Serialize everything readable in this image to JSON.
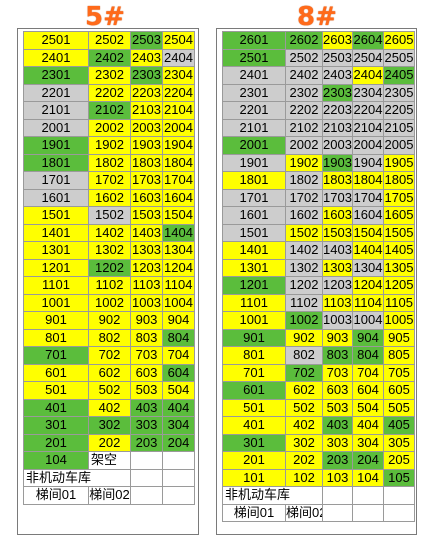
{
  "colors": {
    "yellow": "#ffff00",
    "green": "#5bbd3c",
    "gray": "#cdcdcd",
    "white": "#ffffff",
    "title": "#ff6a1a"
  },
  "buildings": [
    {
      "title": "5#",
      "rows": [
        [
          [
            "2501",
            "y"
          ],
          [
            "2502",
            "y"
          ],
          [
            "2503",
            "g"
          ],
          [
            "2504",
            "y"
          ]
        ],
        [
          [
            "2401",
            "y"
          ],
          [
            "2402",
            "g"
          ],
          [
            "2403",
            "y"
          ],
          [
            "2404",
            "r"
          ]
        ],
        [
          [
            "2301",
            "g"
          ],
          [
            "2302",
            "y"
          ],
          [
            "2303",
            "g"
          ],
          [
            "2304",
            "y"
          ]
        ],
        [
          [
            "2201",
            "r"
          ],
          [
            "2202",
            "y"
          ],
          [
            "2203",
            "y"
          ],
          [
            "2204",
            "y"
          ]
        ],
        [
          [
            "2101",
            "r"
          ],
          [
            "2102",
            "g"
          ],
          [
            "2103",
            "y"
          ],
          [
            "2104",
            "y"
          ]
        ],
        [
          [
            "2001",
            "r"
          ],
          [
            "2002",
            "y"
          ],
          [
            "2003",
            "y"
          ],
          [
            "2004",
            "y"
          ]
        ],
        [
          [
            "1901",
            "g"
          ],
          [
            "1902",
            "y"
          ],
          [
            "1903",
            "y"
          ],
          [
            "1904",
            "y"
          ]
        ],
        [
          [
            "1801",
            "g"
          ],
          [
            "1802",
            "y"
          ],
          [
            "1803",
            "y"
          ],
          [
            "1804",
            "y"
          ]
        ],
        [
          [
            "1701",
            "r"
          ],
          [
            "1702",
            "y"
          ],
          [
            "1703",
            "y"
          ],
          [
            "1704",
            "y"
          ]
        ],
        [
          [
            "1601",
            "r"
          ],
          [
            "1602",
            "y"
          ],
          [
            "1603",
            "y"
          ],
          [
            "1604",
            "y"
          ]
        ],
        [
          [
            "1501",
            "y"
          ],
          [
            "1502",
            "r"
          ],
          [
            "1503",
            "y"
          ],
          [
            "1504",
            "y"
          ]
        ],
        [
          [
            "1401",
            "y"
          ],
          [
            "1402",
            "y"
          ],
          [
            "1403",
            "y"
          ],
          [
            "1404",
            "g"
          ]
        ],
        [
          [
            "1301",
            "y"
          ],
          [
            "1302",
            "y"
          ],
          [
            "1303",
            "y"
          ],
          [
            "1304",
            "y"
          ]
        ],
        [
          [
            "1201",
            "y"
          ],
          [
            "1202",
            "g"
          ],
          [
            "1203",
            "y"
          ],
          [
            "1204",
            "y"
          ]
        ],
        [
          [
            "1101",
            "y"
          ],
          [
            "1102",
            "y"
          ],
          [
            "1103",
            "y"
          ],
          [
            "1104",
            "y"
          ]
        ],
        [
          [
            "1001",
            "y"
          ],
          [
            "1002",
            "y"
          ],
          [
            "1003",
            "y"
          ],
          [
            "1004",
            "y"
          ]
        ],
        [
          [
            "901",
            "y"
          ],
          [
            "902",
            "y"
          ],
          [
            "903",
            "y"
          ],
          [
            "904",
            "y"
          ]
        ],
        [
          [
            "801",
            "y"
          ],
          [
            "802",
            "y"
          ],
          [
            "803",
            "y"
          ],
          [
            "804",
            "g"
          ]
        ],
        [
          [
            "701",
            "g"
          ],
          [
            "702",
            "y"
          ],
          [
            "703",
            "y"
          ],
          [
            "704",
            "y"
          ]
        ],
        [
          [
            "601",
            "y"
          ],
          [
            "602",
            "y"
          ],
          [
            "603",
            "y"
          ],
          [
            "604",
            "g"
          ]
        ],
        [
          [
            "501",
            "y"
          ],
          [
            "502",
            "y"
          ],
          [
            "503",
            "y"
          ],
          [
            "504",
            "y"
          ]
        ],
        [
          [
            "401",
            "g"
          ],
          [
            "402",
            "y"
          ],
          [
            "403",
            "g"
          ],
          [
            "404",
            "g"
          ]
        ],
        [
          [
            "301",
            "g"
          ],
          [
            "302",
            "g"
          ],
          [
            "303",
            "g"
          ],
          [
            "304",
            "g"
          ]
        ],
        [
          [
            "201",
            "g"
          ],
          [
            "202",
            "y"
          ],
          [
            "203",
            "g"
          ],
          [
            "204",
            "g"
          ]
        ],
        [
          [
            "104",
            "g"
          ],
          [
            "架空",
            "w"
          ],
          [
            "",
            "w"
          ],
          [
            "",
            "w"
          ]
        ]
      ],
      "garage": "非机动车库",
      "stairs": [
        "梯间01",
        "梯间02"
      ]
    },
    {
      "title": "8#",
      "rows": [
        [
          [
            "2601",
            "g"
          ],
          [
            "2602",
            "g"
          ],
          [
            "2603",
            "y"
          ],
          [
            "2604",
            "g"
          ],
          [
            "2605",
            "y"
          ]
        ],
        [
          [
            "2501",
            "g"
          ],
          [
            "2502",
            "r"
          ],
          [
            "2503",
            "r"
          ],
          [
            "2504",
            "r"
          ],
          [
            "2505",
            "r"
          ]
        ],
        [
          [
            "2401",
            "r"
          ],
          [
            "2402",
            "r"
          ],
          [
            "2403",
            "r"
          ],
          [
            "2404",
            "y"
          ],
          [
            "2405",
            "g"
          ]
        ],
        [
          [
            "2301",
            "r"
          ],
          [
            "2302",
            "r"
          ],
          [
            "2303",
            "g"
          ],
          [
            "2304",
            "r"
          ],
          [
            "2305",
            "r"
          ]
        ],
        [
          [
            "2201",
            "r"
          ],
          [
            "2202",
            "r"
          ],
          [
            "2203",
            "r"
          ],
          [
            "2204",
            "r"
          ],
          [
            "2205",
            "r"
          ]
        ],
        [
          [
            "2101",
            "r"
          ],
          [
            "2102",
            "r"
          ],
          [
            "2103",
            "r"
          ],
          [
            "2104",
            "r"
          ],
          [
            "2105",
            "r"
          ]
        ],
        [
          [
            "2001",
            "g"
          ],
          [
            "2002",
            "r"
          ],
          [
            "2003",
            "r"
          ],
          [
            "2004",
            "r"
          ],
          [
            "2005",
            "r"
          ]
        ],
        [
          [
            "1901",
            "r"
          ],
          [
            "1902",
            "y"
          ],
          [
            "1903",
            "g"
          ],
          [
            "1904",
            "r"
          ],
          [
            "1905",
            "y"
          ]
        ],
        [
          [
            "1801",
            "y"
          ],
          [
            "1802",
            "r"
          ],
          [
            "1803",
            "y"
          ],
          [
            "1804",
            "y"
          ],
          [
            "1805",
            "y"
          ]
        ],
        [
          [
            "1701",
            "r"
          ],
          [
            "1702",
            "r"
          ],
          [
            "1703",
            "r"
          ],
          [
            "1704",
            "r"
          ],
          [
            "1705",
            "y"
          ]
        ],
        [
          [
            "1601",
            "r"
          ],
          [
            "1602",
            "r"
          ],
          [
            "1603",
            "y"
          ],
          [
            "1604",
            "r"
          ],
          [
            "1605",
            "y"
          ]
        ],
        [
          [
            "1501",
            "r"
          ],
          [
            "1502",
            "y"
          ],
          [
            "1503",
            "y"
          ],
          [
            "1504",
            "y"
          ],
          [
            "1505",
            "y"
          ]
        ],
        [
          [
            "1401",
            "y"
          ],
          [
            "1402",
            "r"
          ],
          [
            "1403",
            "r"
          ],
          [
            "1404",
            "y"
          ],
          [
            "1405",
            "y"
          ]
        ],
        [
          [
            "1301",
            "y"
          ],
          [
            "1302",
            "r"
          ],
          [
            "1303",
            "y"
          ],
          [
            "1304",
            "r"
          ],
          [
            "1305",
            "y"
          ]
        ],
        [
          [
            "1201",
            "g"
          ],
          [
            "1202",
            "r"
          ],
          [
            "1203",
            "r"
          ],
          [
            "1204",
            "y"
          ],
          [
            "1205",
            "y"
          ]
        ],
        [
          [
            "1101",
            "y"
          ],
          [
            "1102",
            "r"
          ],
          [
            "1103",
            "y"
          ],
          [
            "1104",
            "y"
          ],
          [
            "1105",
            "y"
          ]
        ],
        [
          [
            "1001",
            "y"
          ],
          [
            "1002",
            "g"
          ],
          [
            "1003",
            "r"
          ],
          [
            "1004",
            "r"
          ],
          [
            "1005",
            "y"
          ]
        ],
        [
          [
            "901",
            "g"
          ],
          [
            "902",
            "y"
          ],
          [
            "903",
            "y"
          ],
          [
            "904",
            "g"
          ],
          [
            "905",
            "y"
          ]
        ],
        [
          [
            "801",
            "y"
          ],
          [
            "802",
            "r"
          ],
          [
            "803",
            "g"
          ],
          [
            "804",
            "g"
          ],
          [
            "805",
            "y"
          ]
        ],
        [
          [
            "701",
            "y"
          ],
          [
            "702",
            "g"
          ],
          [
            "703",
            "y"
          ],
          [
            "704",
            "y"
          ],
          [
            "705",
            "y"
          ]
        ],
        [
          [
            "601",
            "g"
          ],
          [
            "602",
            "y"
          ],
          [
            "603",
            "y"
          ],
          [
            "604",
            "y"
          ],
          [
            "605",
            "y"
          ]
        ],
        [
          [
            "501",
            "y"
          ],
          [
            "502",
            "y"
          ],
          [
            "503",
            "y"
          ],
          [
            "504",
            "y"
          ],
          [
            "505",
            "y"
          ]
        ],
        [
          [
            "401",
            "y"
          ],
          [
            "402",
            "y"
          ],
          [
            "403",
            "g"
          ],
          [
            "404",
            "y"
          ],
          [
            "405",
            "g"
          ]
        ],
        [
          [
            "301",
            "g"
          ],
          [
            "302",
            "y"
          ],
          [
            "303",
            "y"
          ],
          [
            "304",
            "y"
          ],
          [
            "305",
            "y"
          ]
        ],
        [
          [
            "201",
            "y"
          ],
          [
            "202",
            "y"
          ],
          [
            "203",
            "g"
          ],
          [
            "204",
            "g"
          ],
          [
            "205",
            "y"
          ]
        ],
        [
          [
            "101",
            "y"
          ],
          [
            "102",
            "y"
          ],
          [
            "103",
            "y"
          ],
          [
            "104",
            "y"
          ],
          [
            "105",
            "g"
          ]
        ]
      ],
      "garage": "非机动车库",
      "stairs": [
        "梯间01",
        "梯间02"
      ]
    }
  ]
}
